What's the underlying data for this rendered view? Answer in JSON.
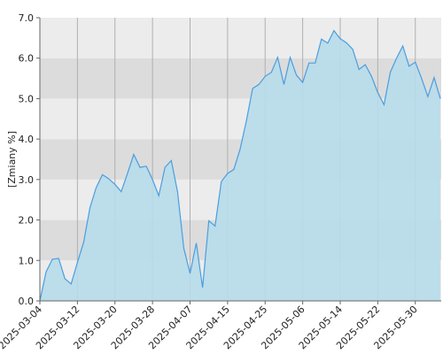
{
  "chart_data": {
    "type": "area",
    "y_label": "[Zmiany %]",
    "categories": [
      "2025-03-04",
      null,
      null,
      null,
      null,
      null,
      "2025-03-12",
      null,
      null,
      null,
      null,
      null,
      "2025-03-20",
      null,
      null,
      null,
      null,
      null,
      "2025-03-28",
      null,
      null,
      null,
      null,
      null,
      "2025-04-07",
      null,
      null,
      null,
      null,
      null,
      "2025-04-15",
      null,
      null,
      null,
      null,
      null,
      "2025-04-25",
      null,
      null,
      null,
      null,
      null,
      "2025-05-06",
      null,
      null,
      null,
      null,
      null,
      "2025-05-14",
      null,
      null,
      null,
      null,
      null,
      "2025-05-22",
      null,
      null,
      null,
      null,
      null,
      "2025-05-30",
      null,
      null,
      null,
      null
    ],
    "values": [
      0.0,
      0.72,
      1.03,
      1.05,
      0.55,
      0.42,
      0.95,
      1.45,
      2.3,
      2.8,
      3.12,
      3.02,
      2.88,
      2.7,
      3.15,
      3.62,
      3.3,
      3.33,
      3.0,
      2.6,
      3.3,
      3.47,
      2.7,
      1.3,
      0.68,
      1.43,
      0.33,
      1.98,
      1.85,
      2.95,
      3.15,
      3.25,
      3.75,
      4.45,
      5.25,
      5.35,
      5.55,
      5.65,
      6.02,
      5.35,
      6.02,
      5.58,
      5.4,
      5.88,
      5.88,
      6.47,
      6.37,
      6.68,
      6.48,
      6.38,
      6.22,
      5.72,
      5.84,
      5.55,
      5.15,
      4.85,
      5.65,
      6.0,
      6.3,
      5.8,
      5.9,
      5.5,
      5.05,
      5.52,
      5.0
    ],
    "color": "#4a9ee0",
    "area_color": "#b7dcea",
    "band_colors": [
      "#ececec",
      "#dcdcdc"
    ],
    "ylim": [
      0,
      7
    ],
    "yticks": [
      {
        "value": 0,
        "label": "0.0"
      },
      {
        "value": 1,
        "label": "1.0"
      },
      {
        "value": 2,
        "label": "2.0"
      },
      {
        "value": 3,
        "label": "3.0"
      },
      {
        "value": 4,
        "label": "4.0"
      },
      {
        "value": 5,
        "label": "5.0"
      },
      {
        "value": 6,
        "label": "6.0"
      },
      {
        "value": 7,
        "label": "7.0"
      }
    ],
    "grid": true
  }
}
